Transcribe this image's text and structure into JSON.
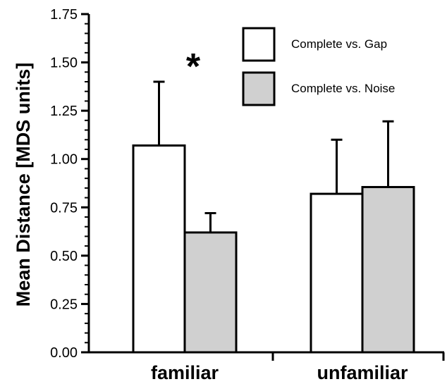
{
  "chart_data": {
    "type": "bar",
    "categories": [
      "familiar",
      "unfamiliar"
    ],
    "series": [
      {
        "name": "Complete vs. Gap",
        "values": [
          1.07,
          0.82
        ],
        "errors": [
          0.33,
          0.28
        ],
        "color": "#ffffff"
      },
      {
        "name": "Complete vs. Noise",
        "values": [
          0.62,
          0.855
        ],
        "errors": [
          0.1,
          0.34
        ],
        "color": "#d0d0d0"
      }
    ],
    "title": "",
    "xlabel": "",
    "ylabel": "Mean Distance [MDS units]",
    "ylim": [
      0,
      1.75
    ],
    "yticks": [
      "0.00",
      "0.25",
      "0.50",
      "0.75",
      "1.00",
      "1.25",
      "1.50",
      "1.75"
    ],
    "grid": false,
    "legend": "top-right",
    "annotations": [
      {
        "text": "*",
        "category": "familiar"
      }
    ]
  }
}
